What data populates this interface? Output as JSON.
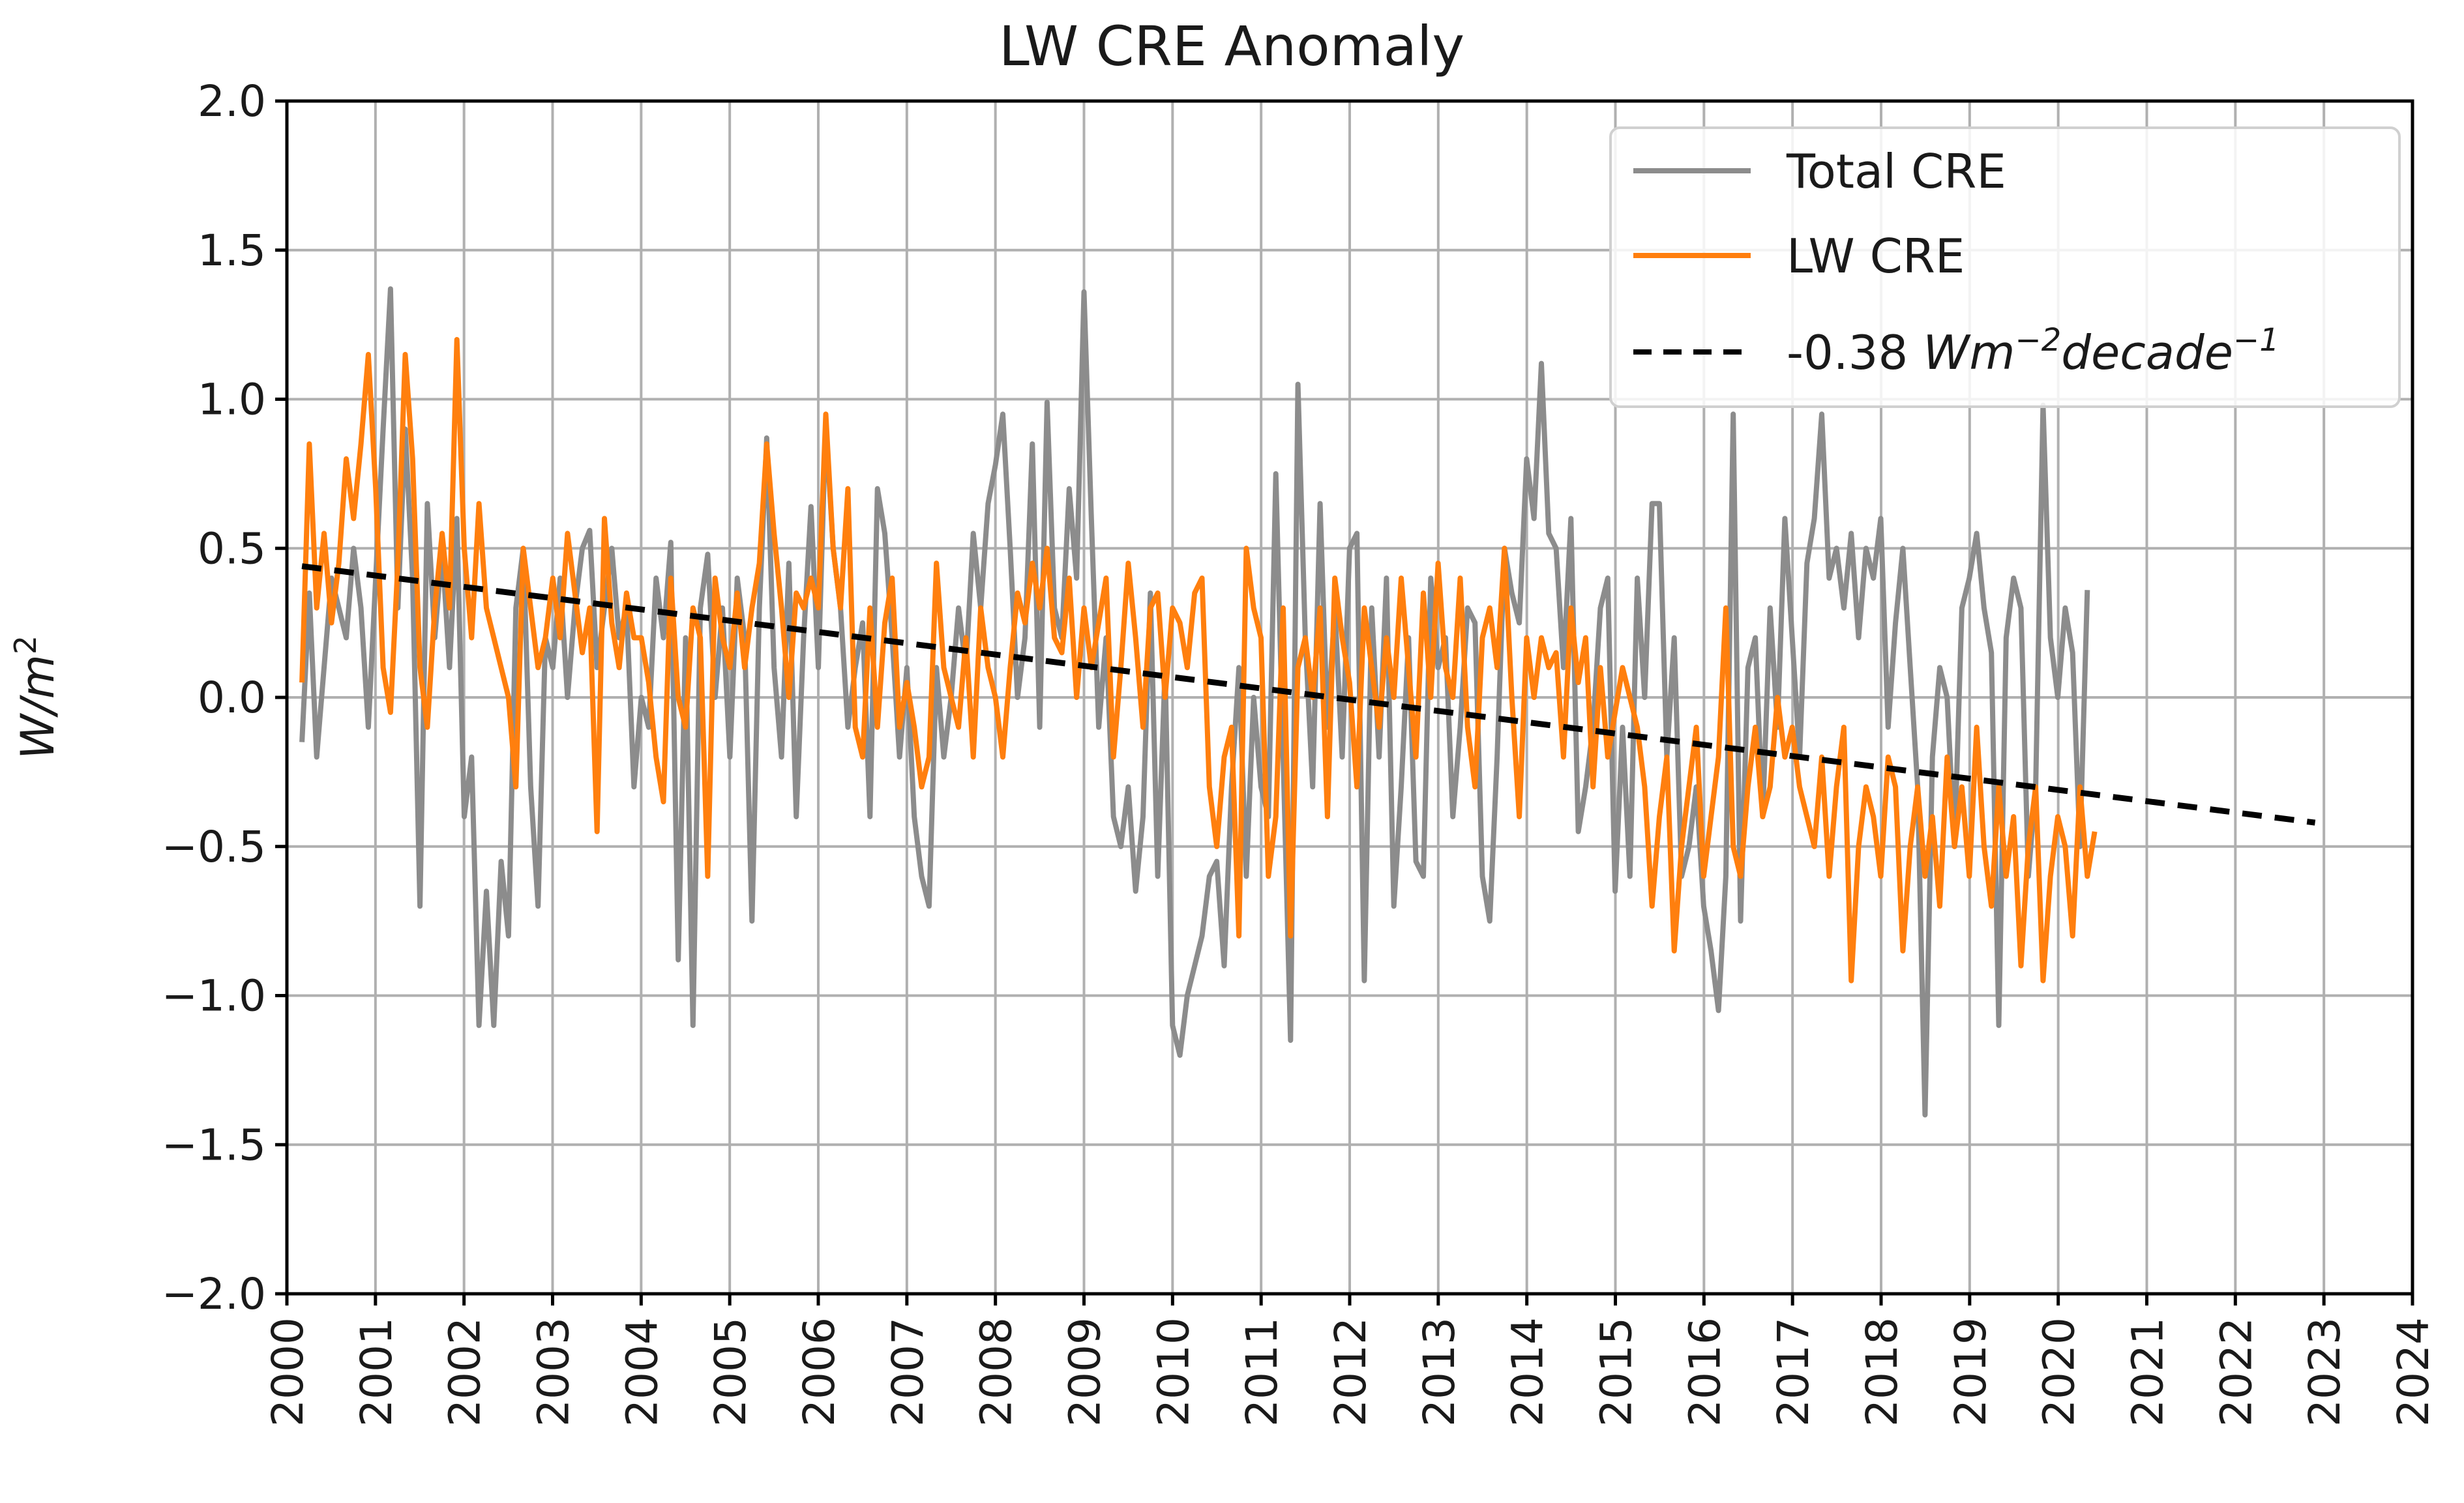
{
  "chart_data": {
    "type": "line",
    "title": "LW CRE Anomaly",
    "xlabel": "",
    "ylabel": "W/m",
    "ylabel_superscript": "2",
    "xlim": [
      2000,
      2024
    ],
    "ylim": [
      -2.0,
      2.0
    ],
    "x_ticks": [
      "2000",
      "2001",
      "2002",
      "2003",
      "2004",
      "2005",
      "2006",
      "2007",
      "2008",
      "2009",
      "2010",
      "2011",
      "2012",
      "2013",
      "2014",
      "2015",
      "2016",
      "2017",
      "2018",
      "2019",
      "2020",
      "2021",
      "2022",
      "2023",
      "2024"
    ],
    "y_ticks": [
      "2.0",
      "1.5",
      "1.0",
      "0.5",
      "0.0",
      "−0.5",
      "−1.0",
      "−1.5",
      "−2.0"
    ],
    "grid": true,
    "legend_position": "top-right",
    "colors": {
      "total": "#8c8c8c",
      "lw": "#ff7f0e",
      "trend": "#000000"
    },
    "series": [
      {
        "name": "Total CRE",
        "start_year": 2000.17,
        "step_years": 0.0833,
        "values": [
          -0.15,
          0.35,
          -0.2,
          0.1,
          0.4,
          0.3,
          0.2,
          0.5,
          0.3,
          -0.1,
          0.4,
          0.9,
          1.37,
          0.3,
          0.9,
          0.4,
          -0.7,
          0.65,
          0.2,
          0.5,
          0.1,
          0.6,
          -0.4,
          -0.2,
          -1.1,
          -0.65,
          -1.1,
          -0.55,
          -0.8,
          0.3,
          0.5,
          -0.3,
          -0.7,
          0.2,
          0.1,
          0.4,
          0.0,
          0.3,
          0.5,
          0.56,
          0.1,
          0.3,
          0.5,
          0.2,
          0.3,
          -0.3,
          0.0,
          -0.1,
          0.4,
          0.2,
          0.52,
          -0.88,
          0.2,
          -1.1,
          0.3,
          0.48,
          0.0,
          0.3,
          -0.2,
          0.4,
          0.2,
          -0.75,
          0.3,
          0.87,
          0.1,
          -0.2,
          0.45,
          -0.4,
          0.2,
          0.64,
          0.1,
          0.92,
          0.5,
          0.3,
          -0.1,
          0.1,
          0.25,
          -0.4,
          0.7,
          0.55,
          0.2,
          -0.2,
          0.1,
          -0.4,
          -0.6,
          -0.7,
          0.1,
          -0.2,
          0.0,
          0.3,
          0.1,
          0.55,
          0.3,
          0.65,
          0.78,
          0.95,
          0.5,
          0.0,
          0.2,
          0.85,
          -0.1,
          0.99,
          0.3,
          0.2,
          0.7,
          0.4,
          1.36,
          0.6,
          -0.1,
          0.2,
          -0.4,
          -0.5,
          -0.3,
          -0.65,
          -0.4,
          0.35,
          -0.6,
          0.1,
          -1.1,
          -1.2,
          -1.0,
          -0.9,
          -0.8,
          -0.6,
          -0.55,
          -0.9,
          -0.3,
          0.1,
          -0.6,
          0.0,
          -0.3,
          -0.4,
          0.75,
          -0.2,
          -1.15,
          1.05,
          0.2,
          -0.3,
          0.65,
          -0.1,
          0.3,
          -0.2,
          0.5,
          0.55,
          -0.95,
          0.3,
          -0.2,
          0.4,
          -0.7,
          -0.3,
          0.2,
          -0.55,
          -0.6,
          0.4,
          0.1,
          0.2,
          -0.4,
          -0.1,
          0.3,
          0.25,
          -0.6,
          -0.75,
          -0.2,
          0.5,
          0.35,
          0.25,
          0.8,
          0.6,
          1.12,
          0.55,
          0.5,
          0.1,
          0.6,
          -0.45,
          -0.3,
          -0.1,
          0.3,
          0.4,
          -0.65,
          -0.1,
          -0.6,
          0.4,
          0.0,
          0.65,
          0.65,
          -0.2,
          0.2,
          -0.6,
          -0.5,
          -0.3,
          -0.7,
          -0.85,
          -1.05,
          -0.6,
          0.95,
          -0.75,
          0.1,
          0.2,
          -0.4,
          0.3,
          -0.1,
          0.6,
          0.2,
          -0.2,
          0.45,
          0.6,
          0.95,
          0.4,
          0.5,
          0.3,
          0.55,
          0.2,
          0.5,
          0.4,
          0.6,
          -0.1,
          0.25,
          0.5,
          0.1,
          -0.3,
          -1.4,
          -0.2,
          0.1,
          0.0,
          -0.5,
          0.3,
          0.4,
          0.55,
          0.3,
          0.15,
          -1.1,
          0.2,
          0.4,
          0.3,
          -0.6,
          -0.3,
          0.98,
          0.2,
          0.0,
          0.3,
          0.15,
          -0.5,
          0.36
        ]
      },
      {
        "name": "LW CRE",
        "start_year": 2000.17,
        "step_years": 0.0833,
        "values": [
          0.05,
          0.85,
          0.3,
          0.55,
          0.25,
          0.45,
          0.8,
          0.6,
          0.85,
          1.15,
          0.7,
          0.1,
          -0.05,
          0.45,
          1.15,
          0.8,
          0.1,
          -0.1,
          0.3,
          0.55,
          0.3,
          1.2,
          0.5,
          0.2,
          0.65,
          0.3,
          0.2,
          0.1,
          0.0,
          -0.3,
          0.5,
          0.3,
          0.1,
          0.2,
          0.4,
          0.2,
          0.55,
          0.35,
          0.15,
          0.3,
          -0.45,
          0.6,
          0.25,
          0.1,
          0.35,
          0.2,
          0.2,
          0.05,
          -0.2,
          -0.35,
          0.4,
          0.0,
          -0.1,
          0.3,
          0.2,
          -0.6,
          0.4,
          0.2,
          0.1,
          0.35,
          0.1,
          0.3,
          0.45,
          0.85,
          0.55,
          0.3,
          0.0,
          0.35,
          0.3,
          0.4,
          0.3,
          0.95,
          0.5,
          0.3,
          0.7,
          -0.1,
          -0.2,
          0.3,
          -0.1,
          0.25,
          0.4,
          -0.1,
          0.05,
          -0.1,
          -0.3,
          -0.2,
          0.45,
          0.1,
          0.0,
          -0.1,
          0.2,
          -0.2,
          0.3,
          0.1,
          0.0,
          -0.2,
          0.1,
          0.35,
          0.25,
          0.45,
          0.3,
          0.5,
          0.2,
          0.15,
          0.4,
          0.0,
          0.3,
          0.1,
          0.25,
          0.4,
          -0.2,
          0.1,
          0.45,
          0.2,
          -0.1,
          0.3,
          0.35,
          0.0,
          0.3,
          0.25,
          0.1,
          0.35,
          0.4,
          -0.3,
          -0.5,
          -0.2,
          -0.1,
          -0.8,
          0.5,
          0.3,
          0.2,
          -0.6,
          -0.4,
          0.3,
          -0.8,
          0.1,
          0.2,
          0.0,
          0.3,
          -0.4,
          0.4,
          0.2,
          0.05,
          -0.3,
          0.3,
          0.1,
          -0.1,
          0.2,
          0.0,
          0.4,
          0.1,
          -0.2,
          0.35,
          0.0,
          0.45,
          0.1,
          0.0,
          0.4,
          -0.1,
          -0.3,
          0.2,
          0.3,
          0.1,
          0.5,
          0.0,
          -0.4,
          0.2,
          0.0,
          0.2,
          0.1,
          0.15,
          -0.2,
          0.3,
          0.05,
          0.2,
          -0.3,
          0.1,
          -0.2,
          -0.05,
          0.1,
          0.0,
          -0.1,
          -0.3,
          -0.7,
          -0.4,
          -0.2,
          -0.85,
          -0.5,
          -0.3,
          -0.1,
          -0.6,
          -0.4,
          -0.2,
          0.3,
          -0.5,
          -0.6,
          -0.3,
          -0.1,
          -0.4,
          -0.3,
          0.0,
          -0.2,
          -0.1,
          -0.3,
          -0.4,
          -0.5,
          -0.2,
          -0.6,
          -0.3,
          -0.1,
          -0.95,
          -0.5,
          -0.3,
          -0.4,
          -0.6,
          -0.2,
          -0.3,
          -0.85,
          -0.5,
          -0.3,
          -0.6,
          -0.4,
          -0.7,
          -0.2,
          -0.5,
          -0.3,
          -0.6,
          -0.1,
          -0.5,
          -0.7,
          -0.3,
          -0.6,
          -0.4,
          -0.9,
          -0.5,
          -0.3,
          -0.95,
          -0.6,
          -0.4,
          -0.5,
          -0.8,
          -0.3,
          -0.6,
          -0.45
        ]
      }
    ],
    "trend": {
      "name": "-0.38 Wm−2decade−1",
      "x_start": 2000.17,
      "y_start": 0.44,
      "x_end": 2022.9,
      "y_end": -0.42
    },
    "legend": {
      "items": [
        {
          "label": "Total CRE"
        },
        {
          "label": "LW CRE"
        },
        {
          "label_prefix": "-0.38 ",
          "label_w": "Wm",
          "label_sup1": "−2",
          "label_decade": "decade",
          "label_sup2": "−1"
        }
      ]
    }
  }
}
